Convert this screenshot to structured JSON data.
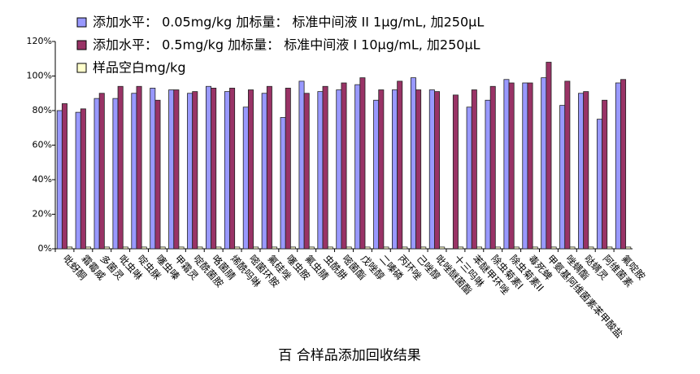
{
  "chart_data": {
    "type": "bar",
    "title": "百 合样品添加回收结果",
    "categories": [
      "吡蚜酮",
      "霜霉威",
      "多菌灵",
      "吡虫啉",
      "啶虫脒",
      "噻虫嗪",
      "甲霜灵",
      "啶酰菌胺",
      "咯菌腈",
      "烯酰吗啉",
      "嘧菌环胺",
      "氟硅唑",
      "噻虫胺",
      "氟虫腈",
      "虫酰肼",
      "嘧菌酯",
      "戊唑醇",
      "二嗪磷",
      "丙环唑",
      "己唑醇",
      "吡唑醚菌酯",
      "十三吗啉",
      "苯醚甲环唑",
      "除虫菊素I",
      "除虫菊素II",
      "毒死蜱",
      "甲氨基阿维菌素苯甲酸盐",
      "唑螨酯",
      "哒螨灵",
      "阿维菌素",
      "氟啶胺"
    ],
    "series": [
      {
        "name": "添加水平： 0.05mg/kg 加标量： 标准中间液 II 1μg/mL, 加250μL",
        "color": "#9999ff",
        "values": [
          80,
          79,
          87,
          87,
          90,
          93,
          92,
          90,
          94,
          91,
          82,
          90,
          76,
          97,
          91,
          92,
          95,
          86,
          92,
          99,
          92,
          null,
          82,
          86,
          98,
          96,
          99,
          83,
          90,
          75,
          96
        ]
      },
      {
        "name": "添加水平： 0.5mg/kg 加标量： 标准中间液 I 10μg/mL, 加250μL",
        "color": "#993366",
        "values": [
          84,
          81,
          90,
          94,
          94,
          86,
          92,
          91,
          93,
          93,
          92,
          94,
          93,
          90,
          94,
          96,
          99,
          92,
          97,
          92,
          91,
          89,
          92,
          94,
          96,
          96,
          108,
          97,
          91,
          86,
          98
        ]
      },
      {
        "name": "样品空白mg/kg",
        "color": "#ffffcc",
        "values": [
          1,
          1,
          1,
          1,
          1,
          1,
          1,
          1,
          1,
          1,
          1,
          1,
          1,
          1,
          1,
          1,
          1,
          1,
          1,
          1,
          1,
          1,
          1,
          1,
          1,
          1,
          1,
          1,
          1,
          1,
          1
        ]
      }
    ],
    "ylim": [
      0,
      120
    ],
    "yticks": [
      {
        "value": 0,
        "label": "0%"
      },
      {
        "value": 20,
        "label": "20%"
      },
      {
        "value": 40,
        "label": "40%"
      },
      {
        "value": 60,
        "label": "60%"
      },
      {
        "value": 80,
        "label": "80%"
      },
      {
        "value": 100,
        "label": "100%"
      },
      {
        "value": 120,
        "label": "120%"
      }
    ],
    "grid": false
  }
}
